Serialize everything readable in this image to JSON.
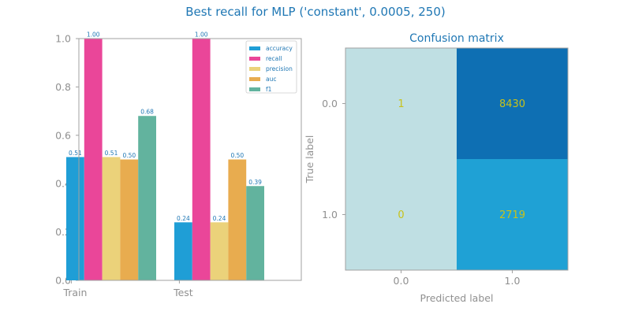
{
  "suptitle": "Best recall for MLP ('constant', 0.0005, 250)",
  "colors": {
    "text_title": "#1f77b4",
    "tick_text": "#909090",
    "axis_line": "#a0a0a0",
    "cm_low": "#bfdfe3",
    "cm_mid": "#1fa1d5",
    "cm_high": "#0e6fb3",
    "cell_text": "#c8c21a"
  },
  "chart_data": [
    {
      "type": "bar",
      "title": "",
      "xlabel": "",
      "ylabel": "",
      "categories": [
        "Train",
        "Test"
      ],
      "ylim": [
        0,
        1.0
      ],
      "yticks": [
        "0.0",
        "0.2",
        "0.4",
        "0.6",
        "0.8",
        "1.0"
      ],
      "legend_position": "top-right",
      "grid": false,
      "series": [
        {
          "name": "accuracy",
          "color": "#1f9ed6",
          "values": [
            0.51,
            0.24
          ],
          "labels": [
            "0.51",
            "0.24"
          ]
        },
        {
          "name": "recall",
          "color": "#ea4699",
          "values": [
            1.0,
            1.0
          ],
          "labels": [
            "1.00",
            "1.00"
          ]
        },
        {
          "name": "precision",
          "color": "#ebd27a",
          "values": [
            0.51,
            0.24
          ],
          "labels": [
            "0.51",
            "0.24"
          ]
        },
        {
          "name": "auc",
          "color": "#e8ac4f",
          "values": [
            0.5,
            0.5
          ],
          "labels": [
            "0.50",
            "0.50"
          ]
        },
        {
          "name": "f1",
          "color": "#62b39e",
          "values": [
            0.68,
            0.39
          ],
          "labels": [
            "0.68",
            "0.39"
          ]
        }
      ]
    },
    {
      "type": "heatmap",
      "title": "Confusion matrix",
      "xlabel": "Predicted label",
      "ylabel": "True label",
      "x_categories": [
        "0.0",
        "1.0"
      ],
      "y_categories": [
        "0.0",
        "1.0"
      ],
      "matrix": [
        [
          1,
          8430
        ],
        [
          0,
          2719
        ]
      ],
      "matrix_labels": [
        [
          "1",
          "8430"
        ],
        [
          "0",
          "2719"
        ]
      ]
    }
  ]
}
